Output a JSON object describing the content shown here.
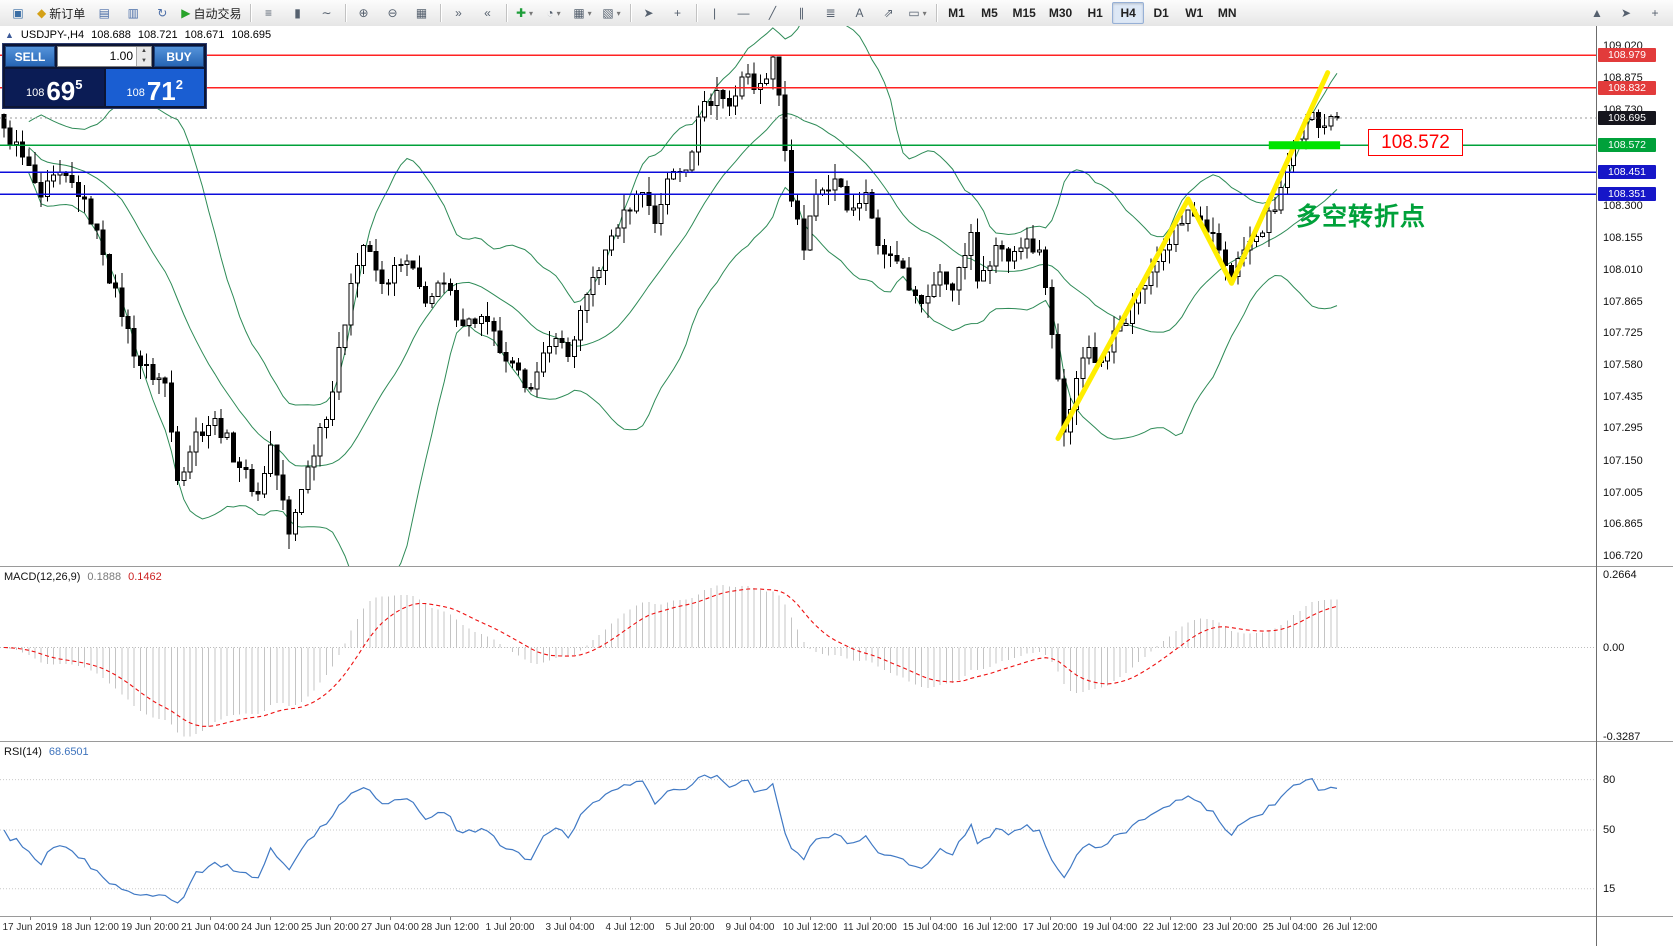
{
  "toolbar": {
    "groups": [
      {
        "name": "standard-left",
        "items": [
          {
            "name": "app-icon",
            "glyph": "▣",
            "color": "#3a6ea5"
          },
          {
            "name": "new-order-button",
            "glyph": "◆",
            "color": "#d4a017",
            "label": "新订单"
          },
          {
            "name": "profiles-icon",
            "glyph": "▤",
            "color": "#4a6da7"
          },
          {
            "name": "charts-window-icon",
            "glyph": "▥",
            "color": "#4a6da7"
          },
          {
            "name": "refresh-icon",
            "glyph": "↻",
            "color": "#4a6da7"
          },
          {
            "name": "autotrading-button",
            "glyph": "▶",
            "color": "#28a32a",
            "label": "自动交易"
          }
        ]
      },
      {
        "name": "chart-type",
        "items": [
          {
            "name": "bar-chart-icon",
            "glyph": "≡"
          },
          {
            "name": "candlestick-chart-icon",
            "glyph": "▮"
          },
          {
            "name": "line-chart-icon",
            "glyph": "∼"
          }
        ]
      },
      {
        "name": "zoom",
        "items": [
          {
            "name": "zoom-in-icon",
            "glyph": "⊕"
          },
          {
            "name": "zoom-out-icon",
            "glyph": "⊖"
          },
          {
            "name": "tile-windows-icon",
            "glyph": "▦"
          }
        ]
      },
      {
        "name": "scroll",
        "items": [
          {
            "name": "auto-scroll-icon",
            "glyph": "»"
          },
          {
            "name": "chart-shift-icon",
            "glyph": "«"
          }
        ]
      },
      {
        "name": "new-objects",
        "items": [
          {
            "name": "new-chart-icon",
            "glyph": "✚",
            "color": "#1f9e3a",
            "caret": true
          },
          {
            "name": "indicators-icon",
            "glyph": "◔",
            "caret": true
          },
          {
            "name": "periods-icon",
            "glyph": "▦",
            "caret": true
          },
          {
            "name": "templates-icon",
            "glyph": "▧",
            "caret": true
          }
        ]
      },
      {
        "name": "cursor-tools",
        "items": [
          {
            "name": "cursor-icon",
            "glyph": "➤"
          },
          {
            "name": "crosshair-icon",
            "glyph": "+"
          }
        ]
      },
      {
        "name": "draw-tools",
        "items": [
          {
            "name": "vertical-line-icon",
            "glyph": "|"
          },
          {
            "name": "horizontal-line-icon",
            "glyph": "—"
          },
          {
            "name": "trendline-icon",
            "glyph": "╱"
          },
          {
            "name": "channel-icon",
            "glyph": "∥"
          },
          {
            "name": "fibonacci-icon",
            "glyph": "≣"
          },
          {
            "name": "text-icon",
            "glyph": "A"
          },
          {
            "name": "arrows-icon",
            "glyph": "⇗"
          },
          {
            "name": "shapes-icon",
            "glyph": "▭",
            "caret": true
          }
        ]
      },
      {
        "name": "timeframes",
        "items": [
          {
            "name": "tf-m1",
            "label": "M1"
          },
          {
            "name": "tf-m5",
            "label": "M5"
          },
          {
            "name": "tf-m15",
            "label": "M15"
          },
          {
            "name": "tf-m30",
            "label": "M30"
          },
          {
            "name": "tf-h1",
            "label": "H1"
          },
          {
            "name": "tf-h4",
            "label": "H4",
            "active": true
          },
          {
            "name": "tf-d1",
            "label": "D1"
          },
          {
            "name": "tf-w1",
            "label": "W1"
          },
          {
            "name": "tf-mn",
            "label": "MN"
          }
        ]
      },
      {
        "name": "right",
        "right": true,
        "items": [
          {
            "name": "scroll-up-icon",
            "glyph": "▲"
          },
          {
            "name": "pointer-icon",
            "glyph": "➤"
          },
          {
            "name": "precision-icon",
            "glyph": "+"
          }
        ]
      }
    ]
  },
  "trade_panel": {
    "sell_label": "SELL",
    "buy_label": "BUY",
    "volume": "1.00",
    "sell_price": {
      "prefix": "108",
      "big": "69",
      "sup": "5"
    },
    "buy_price": {
      "prefix": "108",
      "big": "71",
      "sup": "2"
    }
  },
  "icons": {
    "spinner_up": "▲",
    "spinner_down": "▼",
    "panel_toggle": "▲"
  },
  "chart": {
    "header": {
      "symbol_period": "USDJPY-,H4",
      "ohlc": [
        "108.688",
        "108.721",
        "108.671",
        "108.695"
      ]
    }
  },
  "chart_data": {
    "type": "candlestick",
    "symbol": "USDJPY-",
    "timeframe": "H4",
    "bars": 216,
    "price_path_anchors": [
      [
        0,
        108.65
      ],
      [
        3,
        108.52
      ],
      [
        6,
        108.34
      ],
      [
        9,
        108.45
      ],
      [
        13,
        108.33
      ],
      [
        16,
        108.08
      ],
      [
        19,
        107.8
      ],
      [
        22,
        107.58
      ],
      [
        26,
        107.5
      ],
      [
        28,
        107.06
      ],
      [
        31,
        107.28
      ],
      [
        34,
        107.34
      ],
      [
        38,
        107.12
      ],
      [
        41,
        107.0
      ],
      [
        43,
        107.22
      ],
      [
        46,
        106.82
      ],
      [
        48,
        107.02
      ],
      [
        51,
        107.3
      ],
      [
        53,
        107.46
      ],
      [
        56,
        107.95
      ],
      [
        58,
        108.12
      ],
      [
        61,
        107.95
      ],
      [
        65,
        108.05
      ],
      [
        68,
        107.86
      ],
      [
        71,
        107.95
      ],
      [
        74,
        107.76
      ],
      [
        77,
        107.8
      ],
      [
        81,
        107.6
      ],
      [
        84,
        107.48
      ],
      [
        86,
        107.55
      ],
      [
        89,
        107.7
      ],
      [
        91,
        107.62
      ],
      [
        94,
        107.9
      ],
      [
        97,
        108.1
      ],
      [
        100,
        108.28
      ],
      [
        103,
        108.36
      ],
      [
        105,
        108.22
      ],
      [
        107,
        108.42
      ],
      [
        110,
        108.46
      ],
      [
        112,
        108.7
      ],
      [
        115,
        108.82
      ],
      [
        117,
        108.75
      ],
      [
        119,
        108.88
      ],
      [
        122,
        108.85
      ],
      [
        124,
        108.97
      ],
      [
        125,
        108.8
      ],
      [
        127,
        108.32
      ],
      [
        129,
        108.1
      ],
      [
        131,
        108.35
      ],
      [
        134,
        108.42
      ],
      [
        136,
        108.28
      ],
      [
        139,
        108.36
      ],
      [
        141,
        108.12
      ],
      [
        144,
        108.05
      ],
      [
        146,
        107.92
      ],
      [
        148,
        107.86
      ],
      [
        151,
        108.0
      ],
      [
        153,
        107.92
      ],
      [
        156,
        108.18
      ],
      [
        157,
        107.96
      ],
      [
        160,
        108.12
      ],
      [
        162,
        108.05
      ],
      [
        165,
        108.15
      ],
      [
        167,
        108.1
      ],
      [
        169,
        107.72
      ],
      [
        171,
        107.28
      ],
      [
        173,
        107.52
      ],
      [
        175,
        107.66
      ],
      [
        177,
        107.6
      ],
      [
        180,
        107.76
      ],
      [
        182,
        107.86
      ],
      [
        185,
        108.0
      ],
      [
        187,
        108.1
      ],
      [
        190,
        108.22
      ],
      [
        191,
        108.28
      ],
      [
        194,
        108.18
      ],
      [
        196,
        108.1
      ],
      [
        198,
        107.98
      ],
      [
        200,
        108.1
      ],
      [
        202,
        108.16
      ],
      [
        205,
        108.28
      ],
      [
        207,
        108.48
      ],
      [
        209,
        108.6
      ],
      [
        211,
        108.72
      ],
      [
        213,
        108.66
      ],
      [
        215,
        108.695
      ]
    ],
    "levels": {
      "red_lines": [
        108.979,
        108.832
      ],
      "green_line": 108.572,
      "blue_lines": [
        108.451,
        108.351
      ],
      "current_price": 108.695
    },
    "colors": {
      "bull": "#ffffff",
      "bear": "#000000",
      "outline": "#000000",
      "red_line": "#ff2222",
      "green_line": "#00a13a",
      "blue_line": "#0c0cdb",
      "bollinger": "#2e8b57",
      "current_badge": "#15151d"
    },
    "bollinger": {
      "period": 20,
      "deviation": 2
    },
    "y_axis": {
      "min": 106.72,
      "max": 109.02,
      "ticks": [
        "109.020",
        "108.875",
        "108.730",
        "108.300",
        "108.155",
        "108.010",
        "107.865",
        "107.725",
        "107.580",
        "107.435",
        "107.295",
        "107.150",
        "107.005",
        "106.865",
        "106.720"
      ],
      "badges": [
        {
          "value": "108.979",
          "color": "#e23b3b"
        },
        {
          "value": "108.832",
          "color": "#e23b3b"
        },
        {
          "value": "108.695",
          "color": "#15151d"
        },
        {
          "value": "108.572",
          "color": "#00a13a"
        },
        {
          "value": "108.451",
          "color": "#1616c8"
        },
        {
          "value": "108.351",
          "color": "#1616c8"
        }
      ]
    },
    "x_axis": {
      "labels": [
        "17 Jun 2019",
        "18 Jun 12:00",
        "19 Jun 20:00",
        "21 Jun 04:00",
        "24 Jun 12:00",
        "25 Jun 20:00",
        "27 Jun 04:00",
        "28 Jun 12:00",
        "1 Jul 20:00",
        "3 Jul 04:00",
        "4 Jul 12:00",
        "5 Jul 20:00",
        "9 Jul 04:00",
        "10 Jul 12:00",
        "11 Jul 20:00",
        "15 Jul 04:00",
        "16 Jul 12:00",
        "17 Jul 20:00",
        "19 Jul 04:00",
        "22 Jul 12:00",
        "23 Jul 20:00",
        "25 Jul 04:00",
        "26 Jul 12:00"
      ]
    },
    "indicators": {
      "macd": {
        "label": "MACD(12,26,9)",
        "value_main": "0.1888",
        "value_signal": "0.1462",
        "axis": [
          "0.2664",
          "0.00",
          "-0.3287"
        ],
        "axis_values": [
          0.2664,
          0,
          -0.3287
        ],
        "histogram_color": "#c4c4c4",
        "signal_color": "#ee1111"
      },
      "rsi": {
        "label": "RSI(14)",
        "value": "68.6501",
        "axis": [
          "80",
          "50",
          "15"
        ],
        "axis_values": [
          80,
          50,
          15
        ],
        "line_color": "#4079c4"
      }
    },
    "annotations": {
      "yellow_trendline": {
        "points_bar_price": [
          [
            170,
            107.25
          ],
          [
            191,
            108.33
          ],
          [
            198,
            107.95
          ],
          [
            213.5,
            108.9
          ]
        ],
        "color": "#ffee00",
        "width": 5
      },
      "green_segment": {
        "price": 108.572,
        "from_bar": 204,
        "to_bar": 215.5,
        "color": "#00e400",
        "width": 8
      },
      "turning_point_label": {
        "text": "多空转折点",
        "color": "#00a13a"
      },
      "price_callout": {
        "text": "108.572",
        "color": "#ff0000"
      }
    }
  }
}
